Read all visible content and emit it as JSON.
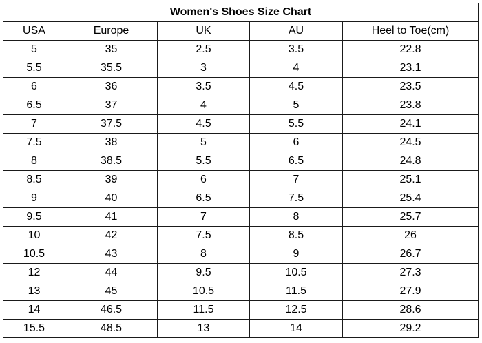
{
  "title": "Women's Shoes Size Chart",
  "columns": [
    "USA",
    "Europe",
    "UK",
    "AU",
    "Heel to Toe(cm)"
  ],
  "rows": [
    [
      "5",
      "35",
      "2.5",
      "3.5",
      "22.8"
    ],
    [
      "5.5",
      "35.5",
      "3",
      "4",
      "23.1"
    ],
    [
      "6",
      "36",
      "3.5",
      "4.5",
      "23.5"
    ],
    [
      "6.5",
      "37",
      "4",
      "5",
      "23.8"
    ],
    [
      "7",
      "37.5",
      "4.5",
      "5.5",
      "24.1"
    ],
    [
      "7.5",
      "38",
      "5",
      "6",
      "24.5"
    ],
    [
      "8",
      "38.5",
      "5.5",
      "6.5",
      "24.8"
    ],
    [
      "8.5",
      "39",
      "6",
      "7",
      "25.1"
    ],
    [
      "9",
      "40",
      "6.5",
      "7.5",
      "25.4"
    ],
    [
      "9.5",
      "41",
      "7",
      "8",
      "25.7"
    ],
    [
      "10",
      "42",
      "7.5",
      "8.5",
      "26"
    ],
    [
      "10.5",
      "43",
      "8",
      "9",
      "26.7"
    ],
    [
      "12",
      "44",
      "9.5",
      "10.5",
      "27.3"
    ],
    [
      "13",
      "45",
      "10.5",
      "11.5",
      "27.9"
    ],
    [
      "14",
      "46.5",
      "11.5",
      "12.5",
      "28.6"
    ],
    [
      "15.5",
      "48.5",
      "13",
      "14",
      "29.2"
    ]
  ]
}
